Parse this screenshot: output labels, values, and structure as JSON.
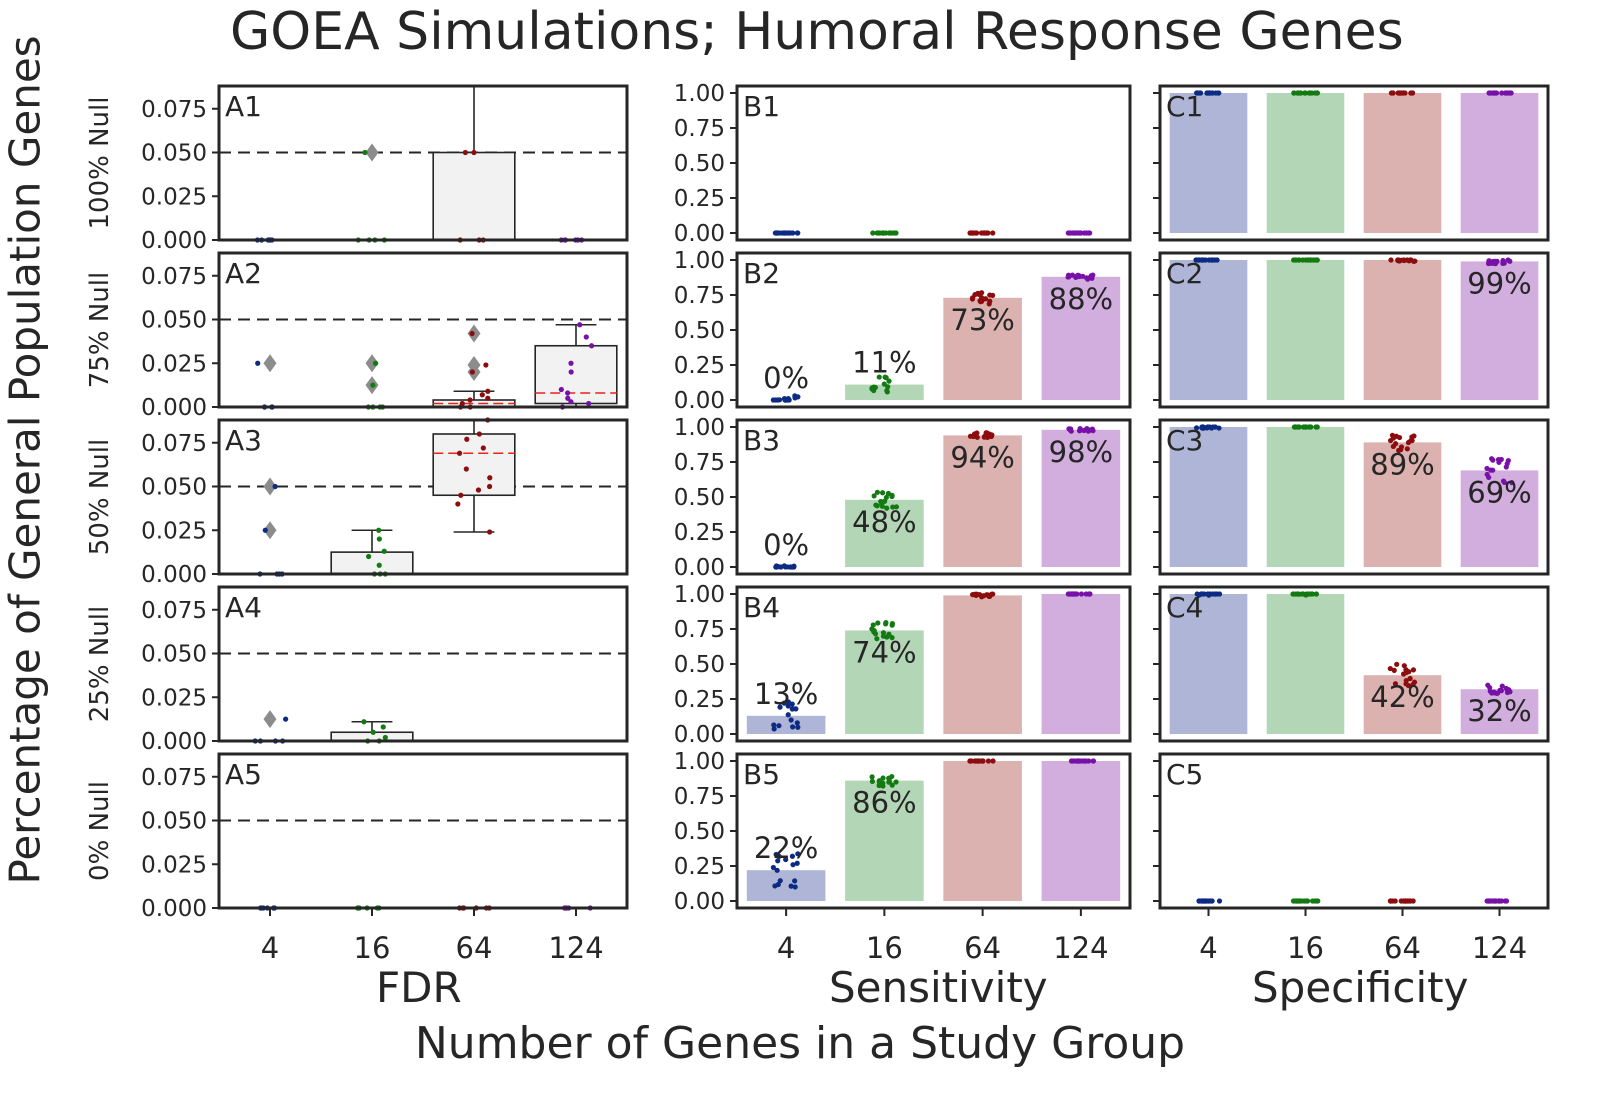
{
  "title": "GOEA Simulations; Humoral Response Genes",
  "xlabel": "Number of Genes in a Study Group",
  "ylabel": "Percentage of General Population Genes",
  "colors": {
    "4": "#0d2b83",
    "16": "#137a12",
    "64": "#8c0d0d",
    "124": "#7711a8",
    "bar_4": "#aeb5d6",
    "bar_16": "#b3d7b6",
    "bar_64": "#dcb2b0",
    "bar_124": "#d2aede",
    "box_fill": "#f2f2f2",
    "median": "#e8231f",
    "outlier": "#8c8c8c"
  },
  "chart_data": {
    "type": "multi-panel",
    "categories": [
      "4",
      "16",
      "64",
      "124"
    ],
    "row_labels": [
      "100% Null",
      "75% Null",
      "50% Null",
      "25% Null",
      "0% Null"
    ],
    "columns": [
      {
        "key": "A",
        "xlabel": "FDR",
        "type": "box",
        "ylim": [
          0,
          0.088
        ],
        "yticks": [
          "0.000",
          "0.025",
          "0.050",
          "0.075"
        ],
        "reference_line": 0.05
      },
      {
        "key": "B",
        "xlabel": "Sensitivity",
        "type": "bar",
        "ylim": [
          -0.05,
          1.05
        ],
        "yticks": [
          "0.00",
          "0.25",
          "0.50",
          "0.75",
          "1.00"
        ]
      },
      {
        "key": "C",
        "xlabel": "Specificity",
        "type": "bar",
        "ylim": [
          -0.05,
          1.05
        ],
        "yticks": []
      }
    ],
    "panels": {
      "A1": {
        "label": "A1",
        "boxes": [
          {
            "q1": 0,
            "median": 0,
            "q3": 0,
            "whislo": 0,
            "whishi": 0,
            "outliers": [],
            "points": [
              0,
              0,
              0,
              0,
              0,
              0
            ]
          },
          {
            "q1": 0,
            "median": 0,
            "q3": 0,
            "whislo": 0,
            "whishi": 0,
            "outliers": [
              0.05
            ],
            "points": [
              0,
              0,
              0,
              0,
              0.05
            ]
          },
          {
            "q1": 0,
            "median": 0,
            "q3": 0.05,
            "whislo": 0,
            "whishi": 0.1,
            "outliers": [],
            "points": [
              0,
              0,
              0,
              0.05,
              0.05
            ]
          },
          {
            "q1": 0,
            "median": 0,
            "q3": 0,
            "whislo": 0,
            "whishi": 0,
            "outliers": [],
            "points": [
              0,
              0,
              0,
              0,
              0,
              0
            ]
          }
        ]
      },
      "A2": {
        "label": "A2",
        "boxes": [
          {
            "q1": 0,
            "median": 0,
            "q3": 0,
            "whislo": 0,
            "whishi": 0,
            "outliers": [
              0.025
            ],
            "points": [
              0,
              0,
              0,
              0,
              0.025
            ]
          },
          {
            "q1": 0,
            "median": 0,
            "q3": 0,
            "whislo": 0,
            "whishi": 0,
            "outliers": [
              0.025,
              0.0125
            ],
            "points": [
              0,
              0,
              0,
              0,
              0.0125,
              0.025
            ]
          },
          {
            "q1": 0,
            "median": 0.002,
            "q3": 0.004,
            "whislo": 0,
            "whishi": 0.009,
            "outliers": [
              0.042,
              0.024,
              0.02
            ],
            "points": [
              0,
              0,
              0.002,
              0.004,
              0.005,
              0.007,
              0.009,
              0.02,
              0.024,
              0.042
            ]
          },
          {
            "q1": 0.002,
            "median": 0.008,
            "q3": 0.035,
            "whislo": 0,
            "whishi": 0.047,
            "outliers": [],
            "points": [
              0,
              0.002,
              0.003,
              0.005,
              0.008,
              0.01,
              0.02,
              0.025,
              0.035,
              0.04,
              0.047
            ]
          }
        ]
      },
      "A3": {
        "label": "A3",
        "boxes": [
          {
            "q1": 0,
            "median": 0,
            "q3": 0,
            "whislo": 0,
            "whishi": 0,
            "outliers": [
              0.05,
              0.025
            ],
            "points": [
              0,
              0,
              0,
              0,
              0.025,
              0.05
            ]
          },
          {
            "q1": 0,
            "median": 0,
            "q3": 0.0125,
            "whislo": 0,
            "whishi": 0.025,
            "outliers": [],
            "points": [
              0,
              0,
              0,
              0.005,
              0.01,
              0.013,
              0.02,
              0.025
            ]
          },
          {
            "q1": 0.045,
            "median": 0.069,
            "q3": 0.08,
            "whislo": 0.024,
            "whishi": 0.088,
            "outliers": [],
            "points": [
              0.024,
              0.04,
              0.045,
              0.048,
              0.05,
              0.055,
              0.06,
              0.069,
              0.072,
              0.077,
              0.08,
              0.088
            ]
          },
          {
            "q1": 0,
            "median": 0,
            "q3": 0,
            "whislo": 0,
            "whishi": 0,
            "outliers": [],
            "points": []
          }
        ]
      },
      "A4": {
        "label": "A4",
        "boxes": [
          {
            "q1": 0,
            "median": 0,
            "q3": 0,
            "whislo": 0,
            "whishi": 0,
            "outliers": [
              0.0125
            ],
            "points": [
              0,
              0,
              0,
              0,
              0.0125
            ]
          },
          {
            "q1": 0,
            "median": 0,
            "q3": 0.005,
            "whislo": 0,
            "whishi": 0.011,
            "outliers": [],
            "points": [
              0,
              0,
              0.002,
              0.005,
              0.008,
              0.011
            ]
          },
          {
            "q1": 0,
            "median": 0,
            "q3": 0,
            "whislo": 0,
            "whishi": 0,
            "outliers": [],
            "points": []
          },
          {
            "q1": 0,
            "median": 0,
            "q3": 0,
            "whislo": 0,
            "whishi": 0,
            "outliers": [],
            "points": []
          }
        ]
      },
      "A5": {
        "label": "A5",
        "boxes": [
          {
            "q1": 0,
            "median": 0,
            "q3": 0,
            "whislo": 0,
            "whishi": 0,
            "outliers": [],
            "points": [
              0,
              0,
              0,
              0,
              0,
              0
            ]
          },
          {
            "q1": 0,
            "median": 0,
            "q3": 0,
            "whislo": 0,
            "whishi": 0,
            "outliers": [],
            "points": [
              0,
              0,
              0,
              0,
              0,
              0
            ]
          },
          {
            "q1": 0,
            "median": 0,
            "q3": 0,
            "whislo": 0,
            "whishi": 0,
            "outliers": [],
            "points": [
              0,
              0,
              0,
              0,
              0,
              0
            ]
          },
          {
            "q1": 0,
            "median": 0,
            "q3": 0,
            "whislo": 0,
            "whishi": 0,
            "outliers": [],
            "points": [
              0,
              0,
              0,
              0,
              0,
              0
            ]
          }
        ]
      },
      "B1": {
        "label": "B1",
        "values": [
          0,
          0,
          0,
          0
        ],
        "show_bars": false,
        "value_labels": [
          "",
          "",
          "",
          ""
        ],
        "spread": [
          0,
          0,
          0,
          0
        ]
      },
      "B2": {
        "label": "B2",
        "values": [
          0,
          0.11,
          0.73,
          0.88
        ],
        "show_bars": true,
        "value_labels": [
          "0%",
          "11%",
          "73%",
          "88%"
        ],
        "spread": [
          0.03,
          0.06,
          0.05,
          0.02
        ]
      },
      "B3": {
        "label": "B3",
        "values": [
          0,
          0.48,
          0.94,
          0.98
        ],
        "show_bars": true,
        "value_labels": [
          "0%",
          "48%",
          "94%",
          "98%"
        ],
        "spread": [
          0.01,
          0.06,
          0.02,
          0.01
        ]
      },
      "B4": {
        "label": "B4",
        "values": [
          0.13,
          0.74,
          0.99,
          1.0
        ],
        "show_bars": true,
        "value_labels": [
          "13%",
          "74%",
          "",
          ""
        ],
        "spread": [
          0.1,
          0.06,
          0.01,
          0
        ]
      },
      "B5": {
        "label": "B5",
        "values": [
          0.22,
          0.86,
          1.0,
          1.0
        ],
        "show_bars": true,
        "value_labels": [
          "22%",
          "86%",
          "",
          ""
        ],
        "spread": [
          0.12,
          0.04,
          0,
          0
        ]
      },
      "C1": {
        "label": "C1",
        "values": [
          1.0,
          1.0,
          1.0,
          1.0
        ],
        "show_bars": true,
        "value_labels": [
          "",
          "",
          "",
          ""
        ],
        "spread": [
          0,
          0,
          0,
          0
        ]
      },
      "C2": {
        "label": "C2",
        "values": [
          1.0,
          1.0,
          1.0,
          0.99
        ],
        "show_bars": true,
        "value_labels": [
          "",
          "",
          "",
          "99%"
        ],
        "spread": [
          0,
          0,
          0.01,
          0.02
        ]
      },
      "C3": {
        "label": "C3",
        "values": [
          1.0,
          1.0,
          0.89,
          0.69
        ],
        "show_bars": true,
        "value_labels": [
          "",
          "",
          "89%",
          "69%"
        ],
        "spread": [
          0.01,
          0,
          0.06,
          0.09
        ]
      },
      "C4": {
        "label": "C4",
        "values": [
          1.0,
          1.0,
          0.42,
          0.32
        ],
        "show_bars": true,
        "value_labels": [
          "",
          "",
          "42%",
          "32%"
        ],
        "spread": [
          0.01,
          0.01,
          0.08,
          0.03
        ]
      },
      "C5": {
        "label": "C5",
        "values": [
          0,
          0,
          0,
          0
        ],
        "show_bars": false,
        "value_labels": [
          "",
          "",
          "",
          ""
        ],
        "spread": [
          0,
          0,
          0,
          0
        ]
      }
    }
  }
}
